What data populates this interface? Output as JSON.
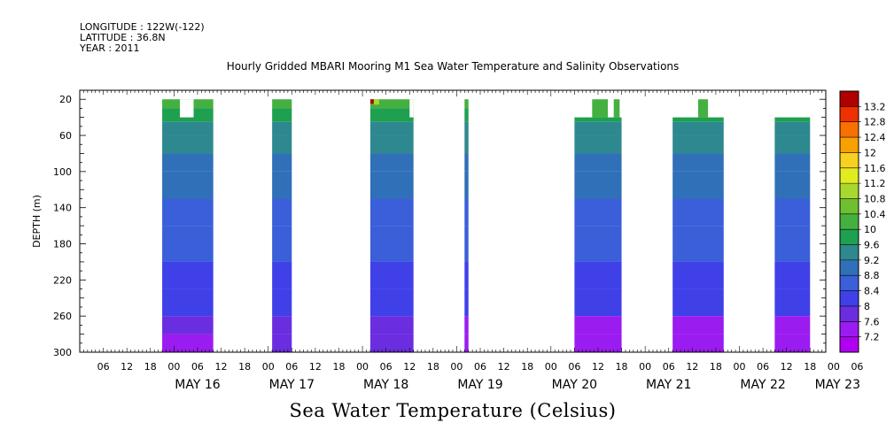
{
  "header": {
    "longitude_label": "LONGITUDE : 122W(-122)",
    "latitude_label": "LATITUDE : 36.8N",
    "year_label": "YEAR : 2011"
  },
  "chart_data": {
    "type": "heatmap",
    "title": "Hourly Gridded MBARI Mooring M1 Sea Water Temperature and Salinity Observations",
    "xlabel": "",
    "ylabel": "DEPTH (m)",
    "colorbar_label": "Sea Water Temperature (Celsius)",
    "x_range_hours": [
      0,
      190
    ],
    "x_origin": "2011-05-15T00:00",
    "ylim": [
      300,
      10
    ],
    "y_inverted": true,
    "y_ticks": [
      20,
      60,
      100,
      140,
      180,
      220,
      260,
      300
    ],
    "x_hour_tick_labels": [
      "06",
      "12",
      "18",
      "00",
      "06",
      "12",
      "18",
      "00",
      "06",
      "12",
      "18",
      "00",
      "06",
      "12",
      "18",
      "00",
      "06",
      "12",
      "18",
      "00",
      "06",
      "12",
      "18",
      "00",
      "06",
      "12",
      "18",
      "00",
      "06",
      "12",
      "18",
      "00",
      "06"
    ],
    "x_day_labels": [
      {
        "label": "MAY 16",
        "hour": 30
      },
      {
        "label": "MAY 17",
        "hour": 54
      },
      {
        "label": "MAY 18",
        "hour": 78
      },
      {
        "label": "MAY 19",
        "hour": 102
      },
      {
        "label": "MAY 20",
        "hour": 126
      },
      {
        "label": "MAY 21",
        "hour": 150
      },
      {
        "label": "MAY 22",
        "hour": 174
      },
      {
        "label": "MAY 23",
        "hour": 193
      }
    ],
    "colorbar": {
      "levels": [
        7.2,
        7.6,
        8,
        8.4,
        8.8,
        9.2,
        9.6,
        10,
        10.4,
        10.8,
        11.2,
        11.6,
        12,
        12.4,
        12.8,
        13.2
      ],
      "colors": [
        "#b000f0",
        "#9a1cf0",
        "#6b2de0",
        "#4040e8",
        "#3a5fd8",
        "#2f70b8",
        "#2e8890",
        "#1ea050",
        "#44b040",
        "#6fc030",
        "#a8d830",
        "#e0ec20",
        "#f8d020",
        "#f8a000",
        "#f87000",
        "#f03000",
        "#b00000"
      ]
    },
    "surface_layers": [
      {
        "depth": 20,
        "value": 10.2
      },
      {
        "depth": 30,
        "value": 10.0
      },
      {
        "depth": 45,
        "value": 9.7
      },
      {
        "depth": 60,
        "value": 9.5
      },
      {
        "depth": 80,
        "value": 9.2
      },
      {
        "depth": 100,
        "value": 9.0
      },
      {
        "depth": 130,
        "value": 8.8
      },
      {
        "depth": 160,
        "value": 8.6
      },
      {
        "depth": 200,
        "value": 8.4
      },
      {
        "depth": 230,
        "value": 8.2
      },
      {
        "depth": 260,
        "value": 8.0
      },
      {
        "depth": 280,
        "value": 7.8
      },
      {
        "depth": 300,
        "value": 7.6
      }
    ],
    "observation_blocks": [
      {
        "start": 21,
        "end": 34,
        "top_depth": 20,
        "steps": [
          {
            "start": 25.5,
            "end": 29,
            "top_depth": 40
          }
        ],
        "deep_value": 7.5
      },
      {
        "start": 49,
        "end": 54,
        "top_depth": 20,
        "steps": [],
        "deep_value": 7.6
      },
      {
        "start": 74,
        "end": 85,
        "top_depth": 20,
        "steps": [
          {
            "start": 84,
            "end": 85,
            "top_depth": 40
          }
        ],
        "deep_value": 7.7,
        "hot_corner": 13.2
      },
      {
        "start": 98,
        "end": 99,
        "top_depth": 20,
        "steps": [],
        "deep_value": 7.3
      },
      {
        "start": 126,
        "end": 138,
        "top_depth": 40,
        "steps": [
          {
            "start": 130.5,
            "end": 134.5,
            "top_depth": 20
          },
          {
            "start": 136,
            "end": 137.5,
            "top_depth": 20
          }
        ],
        "deep_value": 7.2
      },
      {
        "start": 151,
        "end": 164,
        "top_depth": 40,
        "steps": [
          {
            "start": 157.5,
            "end": 160,
            "top_depth": 20
          }
        ],
        "deep_value": 7.2
      },
      {
        "start": 177,
        "end": 186,
        "top_depth": 40,
        "steps": [],
        "deep_value": 7.2
      }
    ]
  }
}
